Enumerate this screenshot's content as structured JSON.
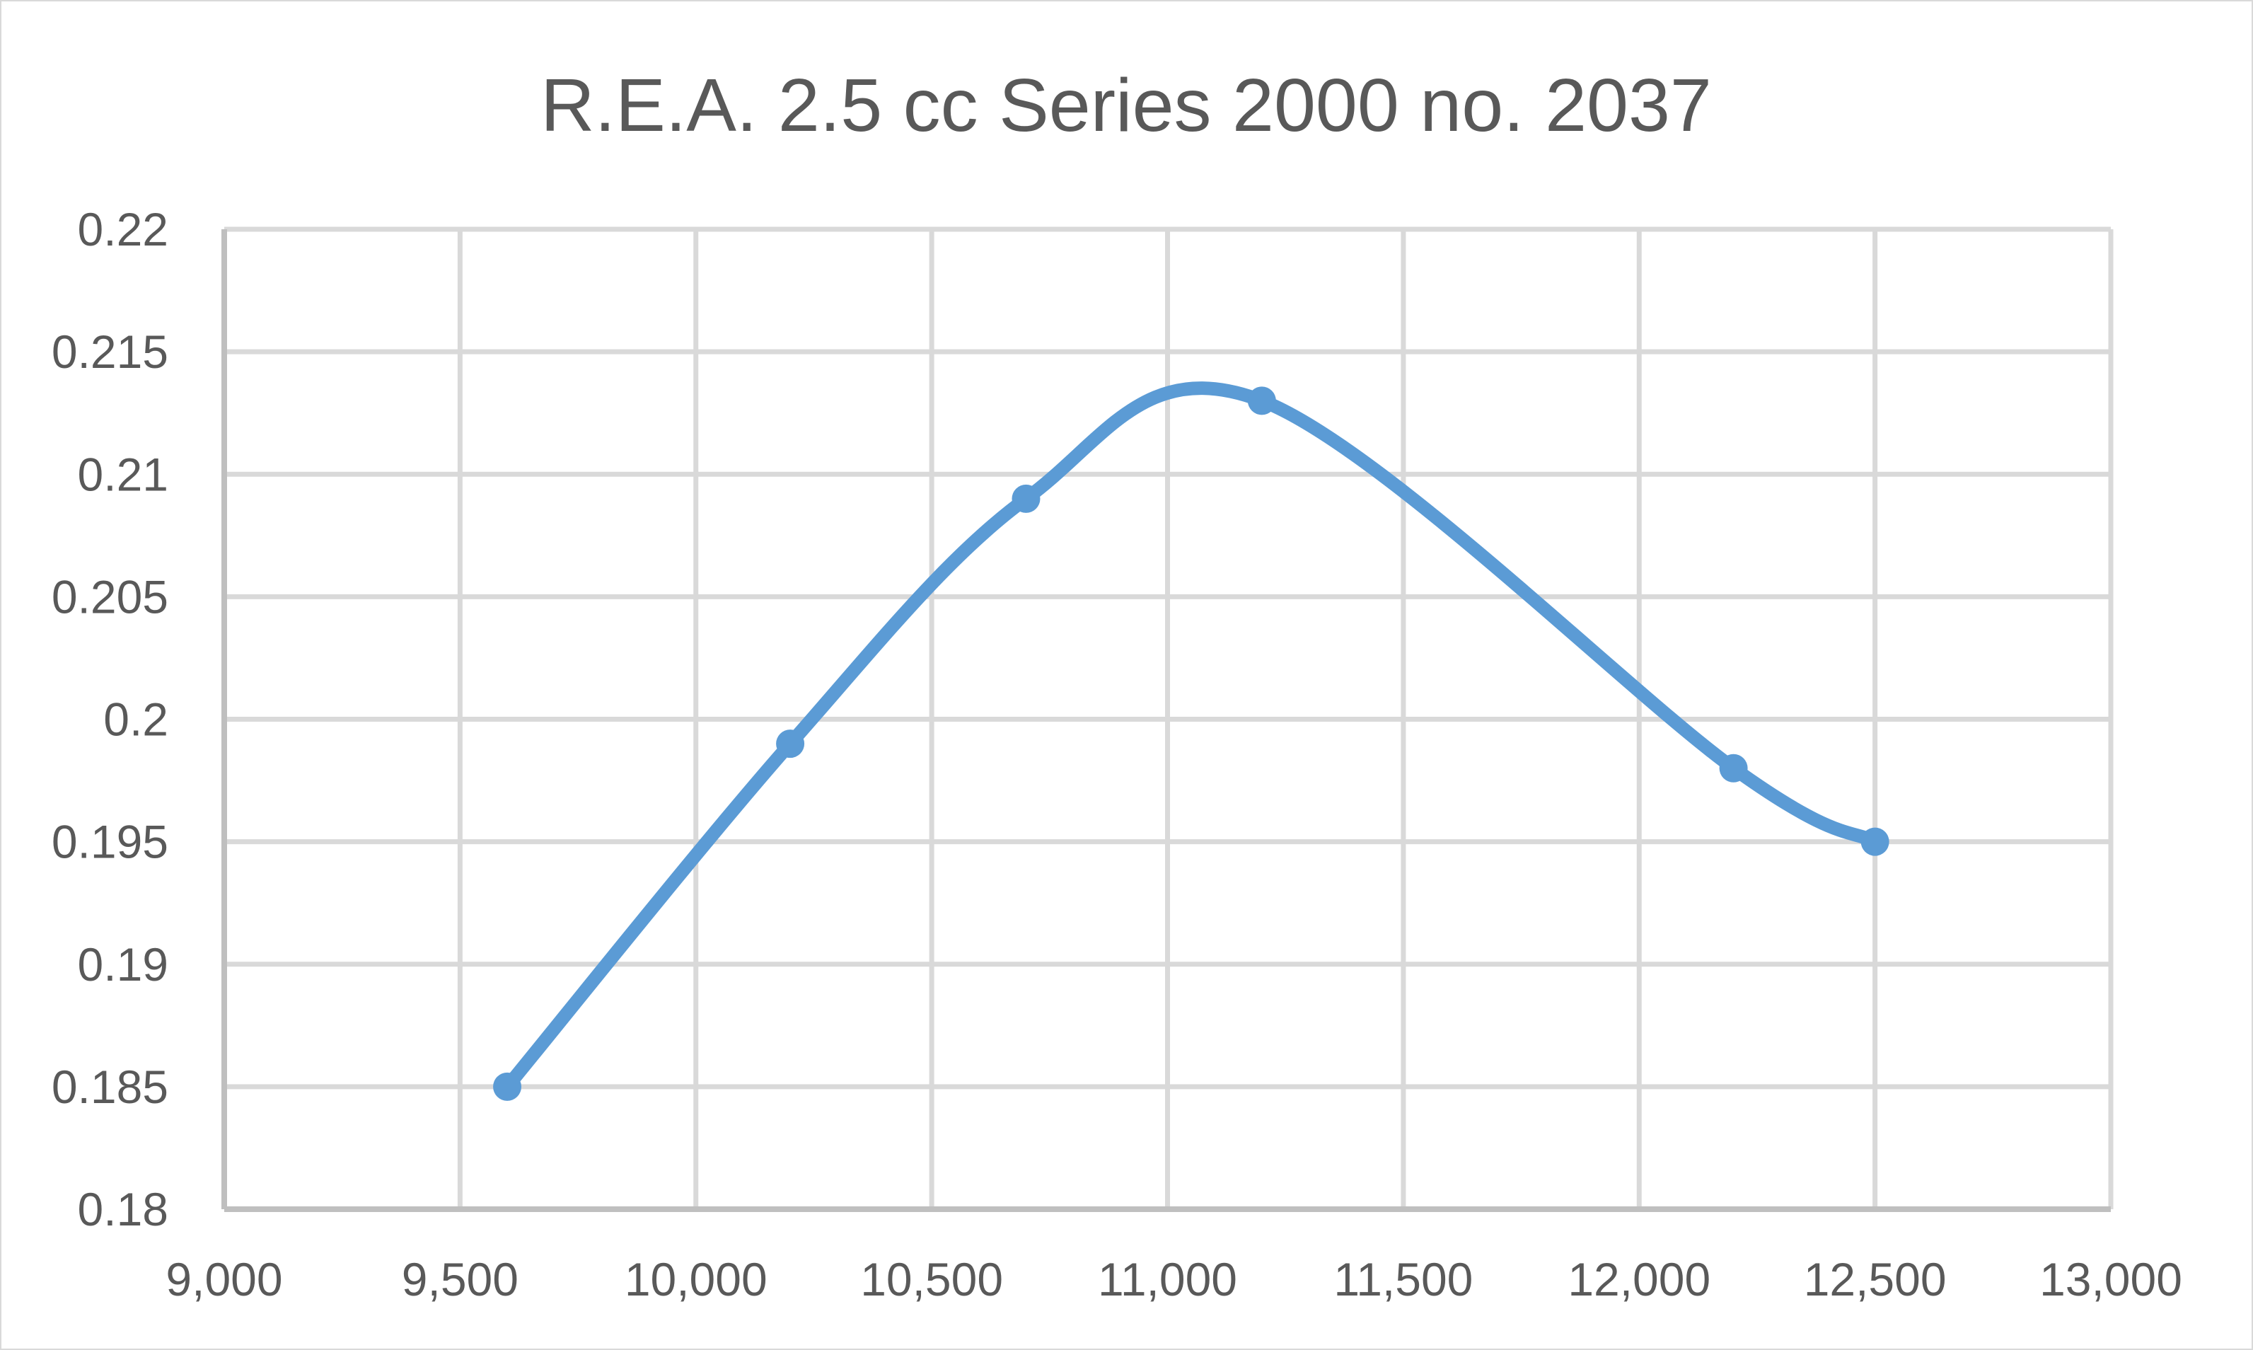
{
  "chart_data": {
    "type": "scatter",
    "title": "R.E.A. 2.5 cc Series 2000 no. 2037",
    "xlabel": "",
    "ylabel": "",
    "xlim": [
      9000,
      13000
    ],
    "ylim": [
      0.18,
      0.22
    ],
    "x_ticks": [
      9000,
      9500,
      10000,
      10500,
      11000,
      11500,
      12000,
      12500,
      13000
    ],
    "x_tick_labels": [
      "9,000",
      "9,500",
      "10,000",
      "10,500",
      "11,000",
      "11,500",
      "12,000",
      "12,500",
      "13,000"
    ],
    "y_ticks": [
      0.18,
      0.185,
      0.19,
      0.195,
      0.2,
      0.205,
      0.21,
      0.215,
      0.22
    ],
    "y_tick_labels": [
      "0.18",
      "0.185",
      "0.19",
      "0.195",
      "0.2",
      "0.205",
      "0.21",
      "0.215",
      "0.22"
    ],
    "grid": true,
    "legend": "none",
    "smooth_line": true,
    "series": [
      {
        "color": "#5b9bd5",
        "x": [
          9600,
          10200,
          10700,
          11200,
          12200,
          12500
        ],
        "y": [
          0.185,
          0.199,
          0.209,
          0.213,
          0.198,
          0.195
        ]
      }
    ]
  }
}
